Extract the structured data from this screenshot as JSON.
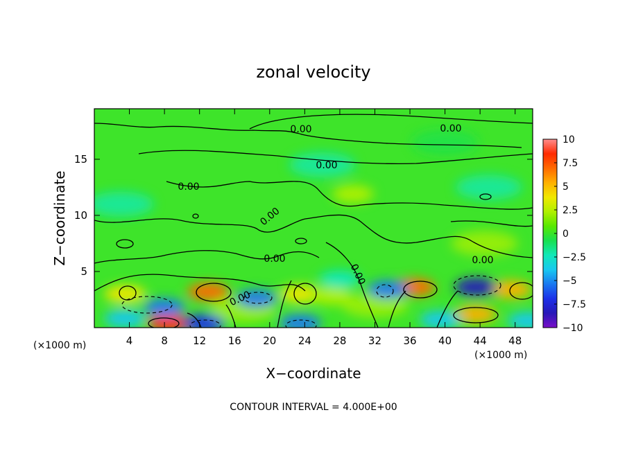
{
  "chart_data": {
    "type": "heatmap",
    "title": "zonal velocity",
    "xlabel": "X−coordinate",
    "ylabel": "Z−coordinate",
    "x_unit_left": "(×1000 m)",
    "x_unit_right": "(×1000 m)",
    "footer": "CONTOUR INTERVAL = 4.000E+00",
    "xlim": [
      0,
      50
    ],
    "ylim": [
      0,
      19.5
    ],
    "xticks": [
      4,
      8,
      12,
      16,
      20,
      24,
      28,
      32,
      36,
      40,
      44,
      48
    ],
    "yticks": [
      5,
      10,
      15
    ],
    "colorbar": {
      "min": -10,
      "max": 10,
      "ticks": [
        "10",
        "7.5",
        "5",
        "2.5",
        "0",
        "−2.5",
        "−5",
        "−7.5",
        "−10"
      ],
      "tick_values": [
        10,
        7.5,
        5,
        2.5,
        0,
        -2.5,
        -5,
        -7.5,
        -10
      ],
      "colors": [
        "#ff8e8e",
        "#ff2a00",
        "#ff6a00",
        "#ffb000",
        "#f0e800",
        "#b0f000",
        "#58e800",
        "#18e050",
        "#10e8b8",
        "#18c8f0",
        "#1a78f0",
        "#1c30e8",
        "#2818b8",
        "#7a10c8"
      ]
    },
    "contour_label": "0.00",
    "contour_interval": 4.0,
    "features": [
      {
        "x": 13,
        "z": 3.2,
        "value": 6.5
      },
      {
        "x": 8.5,
        "z": 0.4,
        "value": 8.5
      },
      {
        "x": 36.5,
        "z": 3.6,
        "value": 6.5
      },
      {
        "x": 43.5,
        "z": 1.2,
        "value": 5.5
      },
      {
        "x": 47.5,
        "z": 3.4,
        "value": 5.0
      },
      {
        "x": 23.5,
        "z": 3.0,
        "value": 3.5
      },
      {
        "x": 3.5,
        "z": 3.0,
        "value": 3.5
      },
      {
        "x": 17,
        "z": 1.6,
        "value": 2.5
      },
      {
        "x": 29.5,
        "z": 11.9,
        "value": 3.0
      },
      {
        "x": 44.5,
        "z": 7.5,
        "value": 2.5
      },
      {
        "x": 27,
        "z": 2.8,
        "value": 3.0
      },
      {
        "x": 32,
        "z": 2.0,
        "value": 2.5
      },
      {
        "x": 43.5,
        "z": 3.6,
        "value": -8.0
      },
      {
        "x": 8,
        "z": 1.8,
        "value": -6.0
      },
      {
        "x": 18.5,
        "z": 2.6,
        "value": -5.0
      },
      {
        "x": 33.5,
        "z": 3.4,
        "value": -5.5
      },
      {
        "x": 12.5,
        "z": 0.4,
        "value": -6.5
      },
      {
        "x": 23.5,
        "z": 0.4,
        "value": -6.0
      },
      {
        "x": 3.5,
        "z": 0.8,
        "value": -4.0
      },
      {
        "x": 28,
        "z": 4.3,
        "value": -3.0
      },
      {
        "x": 39.5,
        "z": 0.7,
        "value": -4.5
      },
      {
        "x": 49.5,
        "z": 0.6,
        "value": -4.0
      },
      {
        "x": 26,
        "z": 14.5,
        "value": -2.0
      },
      {
        "x": 3,
        "z": 11.0,
        "value": -2.0
      },
      {
        "x": 45,
        "z": 12.5,
        "value": -1.8
      },
      {
        "x": 40,
        "z": 16.5,
        "value": -1.5
      }
    ]
  }
}
